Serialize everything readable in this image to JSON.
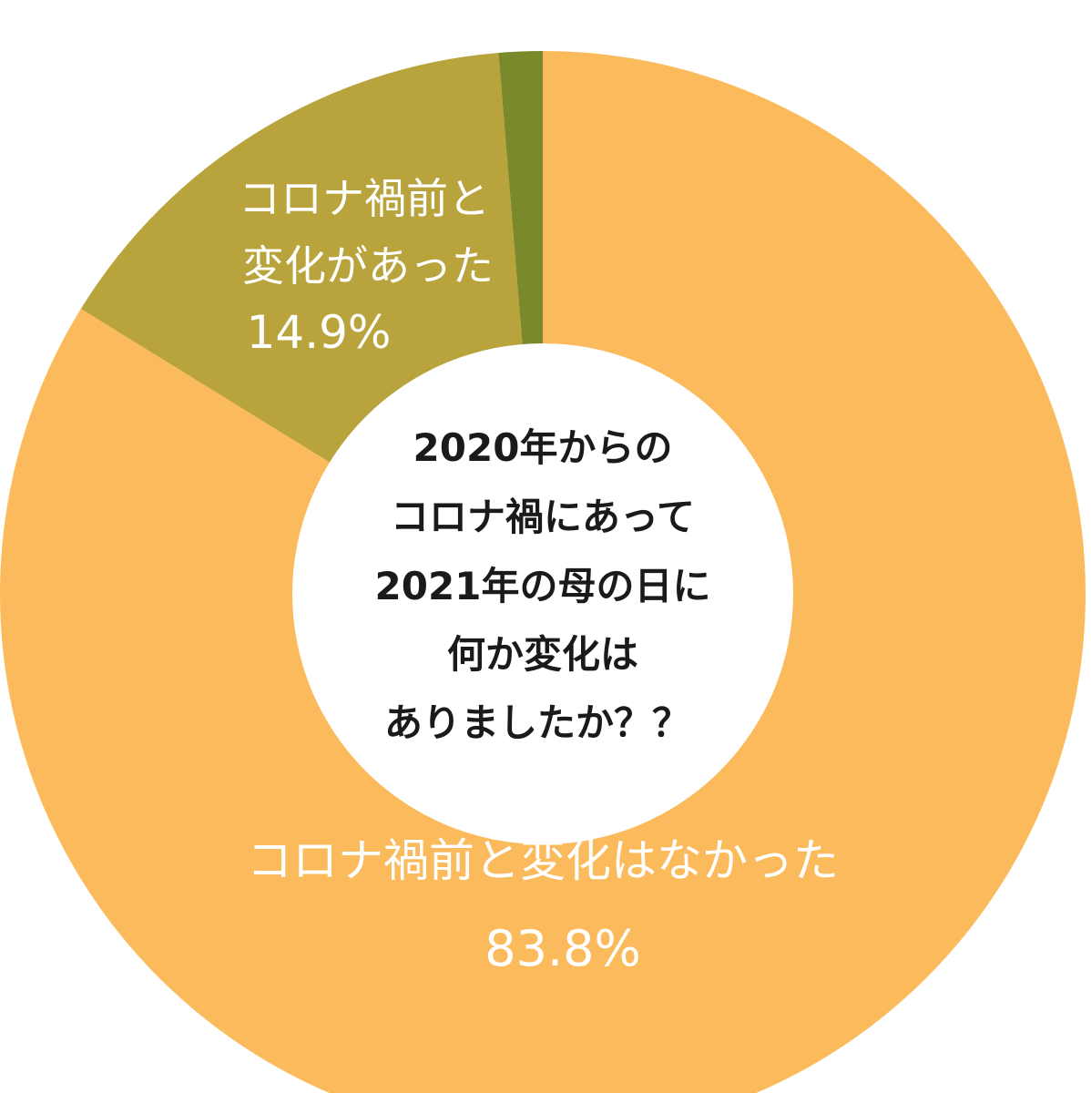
{
  "chart_data": {
    "type": "pie",
    "variant": "donut",
    "center_text": [
      "2020年からの",
      "コロナ禍にあって",
      "2021年の母の日に",
      "何か変化は",
      "ありましたか？？"
    ],
    "slices": [
      {
        "label_lines": [
          "コロナ禍前と変化はなかった"
        ],
        "value_label": "83.8%",
        "value": 83.8,
        "color": "#fbbb5c"
      },
      {
        "label_lines": [
          "コロナ禍前と",
          "変化があった"
        ],
        "value_label": "14.9%",
        "value": 14.9,
        "color": "#b8a33c"
      },
      {
        "label_lines": [],
        "value_label": "",
        "value": 1.3,
        "color": "#7a8a2a"
      }
    ],
    "start_angle_deg": 0,
    "direction": "clockwise",
    "legend": "none",
    "background": "#ffffff"
  }
}
